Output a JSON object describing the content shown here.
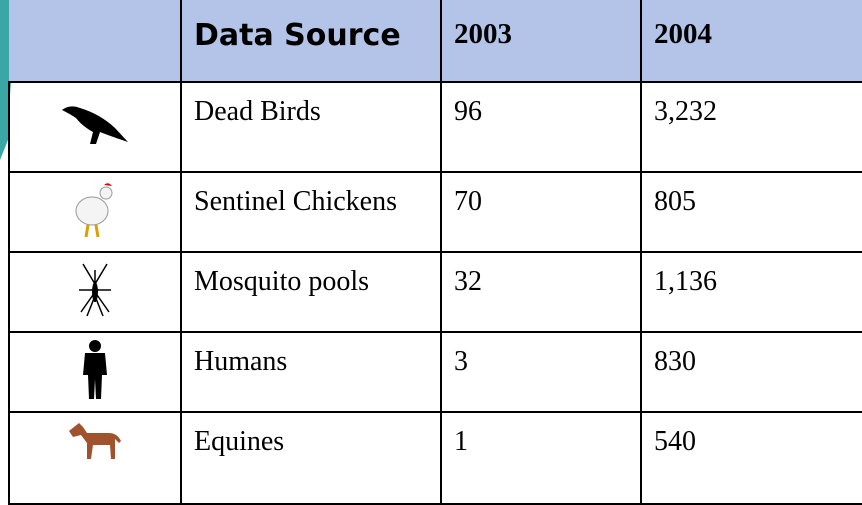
{
  "table": {
    "header": [
      "Data Source",
      "2003",
      "2004"
    ],
    "rows": [
      [
        "Dead Birds",
        "96",
        "3,232"
      ],
      [
        "Sentinel Chickens",
        "70",
        "805"
      ],
      [
        "Mosquito pools",
        "32",
        "1,136"
      ],
      [
        "Humans",
        "3",
        "830"
      ],
      [
        "Equines",
        "1",
        "540"
      ]
    ]
  }
}
